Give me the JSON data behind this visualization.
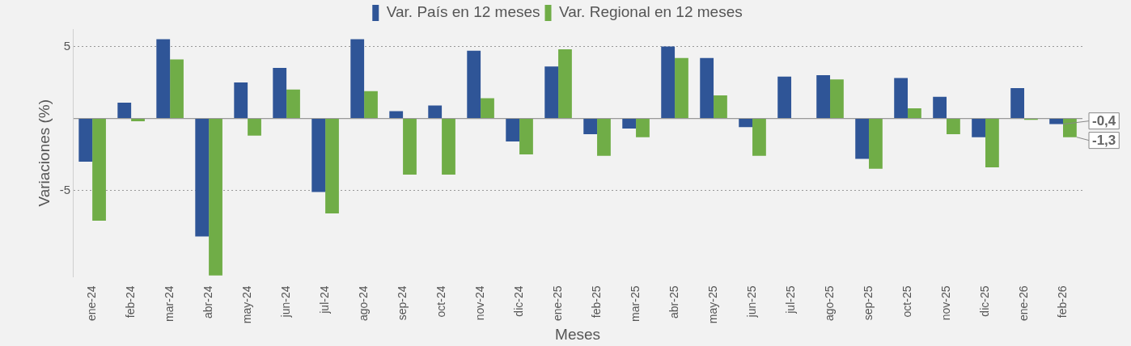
{
  "chart_data": {
    "type": "bar",
    "xlabel": "Meses",
    "ylabel": "Variaciones (%)",
    "categories": [
      "ene-24",
      "feb-24",
      "mar-24",
      "abr-24",
      "may-24",
      "jun-24",
      "jul-24",
      "ago-24",
      "sep-24",
      "oct-24",
      "nov-24",
      "dic-24",
      "ene-25",
      "feb-25",
      "mar-25",
      "abr-25",
      "may-25",
      "jun-25",
      "jul-25",
      "ago-25",
      "sep-25",
      "oct-25",
      "nov-25",
      "dic-25",
      "ene-26",
      "feb-26"
    ],
    "series": [
      {
        "name": "Var. País en 12 meses",
        "color": "#2f5597",
        "values": [
          -3.0,
          1.1,
          5.5,
          -8.2,
          2.5,
          3.5,
          -5.1,
          5.5,
          0.5,
          0.9,
          4.7,
          -1.6,
          3.6,
          -1.1,
          -0.7,
          5.0,
          4.2,
          -0.6,
          2.9,
          3.0,
          -2.8,
          2.8,
          1.5,
          -1.3,
          2.1,
          -0.4
        ],
        "value_labels": [
          null,
          null,
          null,
          null,
          null,
          null,
          null,
          null,
          null,
          null,
          null,
          null,
          null,
          null,
          null,
          null,
          null,
          null,
          null,
          null,
          null,
          null,
          null,
          null,
          null,
          "-0,4"
        ]
      },
      {
        "name": "Var. Regional en 12 meses",
        "color": "#70ad47",
        "values": [
          -7.1,
          -0.2,
          4.1,
          -10.9,
          -1.2,
          2.0,
          -6.6,
          1.9,
          -3.9,
          -3.9,
          1.4,
          -2.5,
          4.8,
          -2.6,
          -1.3,
          4.2,
          1.6,
          -2.6,
          0.0,
          2.7,
          -3.5,
          0.7,
          -1.1,
          -3.4,
          -0.1,
          -1.3
        ],
        "value_labels": [
          null,
          null,
          null,
          null,
          null,
          null,
          null,
          null,
          null,
          null,
          null,
          null,
          null,
          null,
          null,
          null,
          null,
          null,
          null,
          null,
          null,
          null,
          null,
          null,
          null,
          "-1,3"
        ]
      }
    ],
    "ylim": [
      -11,
      6.2
    ],
    "yticks": [
      -5,
      {
        "value": 0,
        "label": null
      },
      5
    ],
    "grid": "y",
    "legend": "top"
  }
}
